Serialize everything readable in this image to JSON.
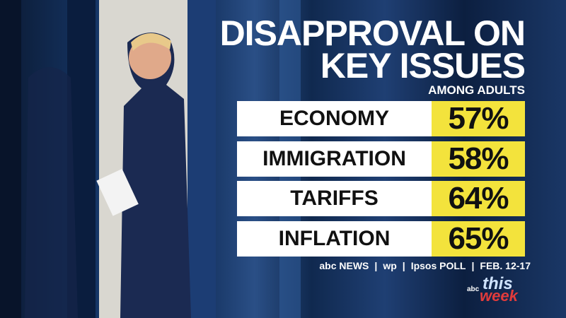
{
  "header": {
    "title_lines": [
      "DISAPPROVAL ON",
      "KEY ISSUES"
    ],
    "subtitle": "AMONG ADULTS"
  },
  "table": {
    "rows": [
      [
        "ECONOMY",
        "57%"
      ],
      [
        "IMMIGRATION",
        "58%"
      ],
      [
        "TARIFFS",
        "64%"
      ],
      [
        "INFLATION",
        "65%"
      ]
    ]
  },
  "source": {
    "parts": [
      "abc NEWS",
      "wp",
      "Ipsos POLL",
      "FEB. 12-17"
    ]
  },
  "logo": {
    "network": "abc",
    "show_lines": [
      "this",
      "week"
    ]
  }
}
